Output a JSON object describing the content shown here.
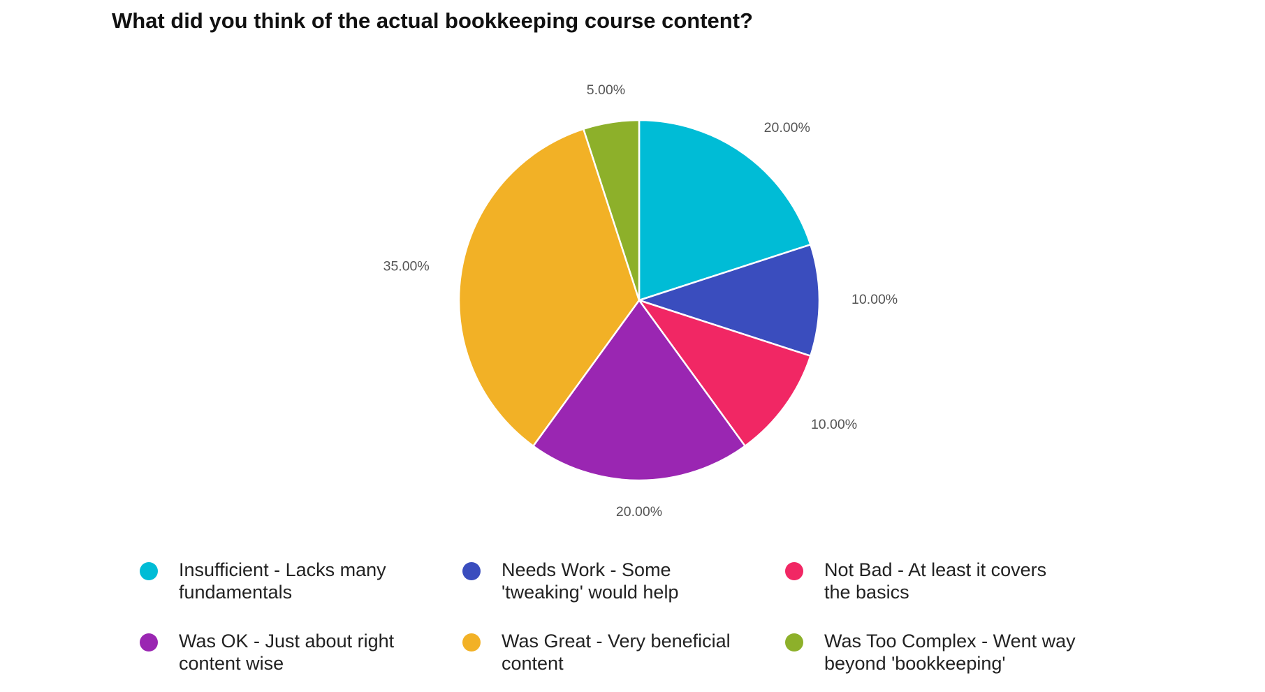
{
  "chart_data": {
    "type": "pie",
    "title": "What did you think of the actual bookkeeping course content?",
    "legend_position": "bottom",
    "slices": [
      {
        "label": "Insufficient - Lacks many fundamentals",
        "value": 20,
        "display": "20.00%",
        "color": "#00BCD6"
      },
      {
        "label": "Needs Work - Some 'tweaking' would help",
        "value": 10,
        "display": "10.00%",
        "color": "#3A4DBE"
      },
      {
        "label": "Not Bad - At least it covers the basics",
        "value": 10,
        "display": "10.00%",
        "color": "#F12764"
      },
      {
        "label": "Was OK - Just about right content wise",
        "value": 20,
        "display": "20.00%",
        "color": "#9A26B2"
      },
      {
        "label": "Was Great - Very beneficial content",
        "value": 35,
        "display": "35.00%",
        "color": "#F2B126"
      },
      {
        "label": "Was Too Complex - Went way beyond 'bookkeeping'",
        "value": 5,
        "display": "5.00%",
        "color": "#8DB02A"
      }
    ]
  }
}
